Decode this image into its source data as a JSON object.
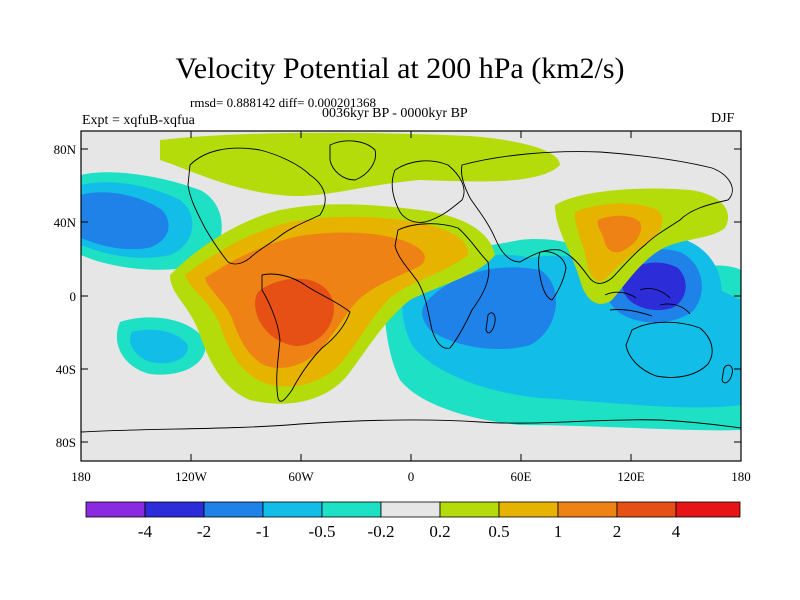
{
  "map": {
    "title": "Velocity Potential at 200 hPa (km2/s)",
    "stats": "rmsd= 0.888142 diff= 0.000201368",
    "experiment": "Expt = xqfuB-xqfua",
    "period": "0036kyr BP - 0000kyr BP",
    "season": "DJF",
    "lat_labels": [
      "80N",
      "40N",
      "0",
      "40S",
      "80S"
    ],
    "lon_labels": [
      "180",
      "120W",
      "60W",
      "0",
      "60E",
      "120E",
      "180"
    ]
  },
  "colorbar": {
    "labels": [
      "-4",
      "-2",
      "-1",
      "-0.5",
      "-0.2",
      "0.2",
      "0.5",
      "1",
      "2",
      "4"
    ],
    "colors": [
      "#8a2be2",
      "#2c2cd9",
      "#1e82e8",
      "#12bde8",
      "#1ee0c4",
      "#e6e6e6",
      "#b4dc0a",
      "#e6b400",
      "#ee8214",
      "#e65014",
      "#e61414"
    ]
  }
}
